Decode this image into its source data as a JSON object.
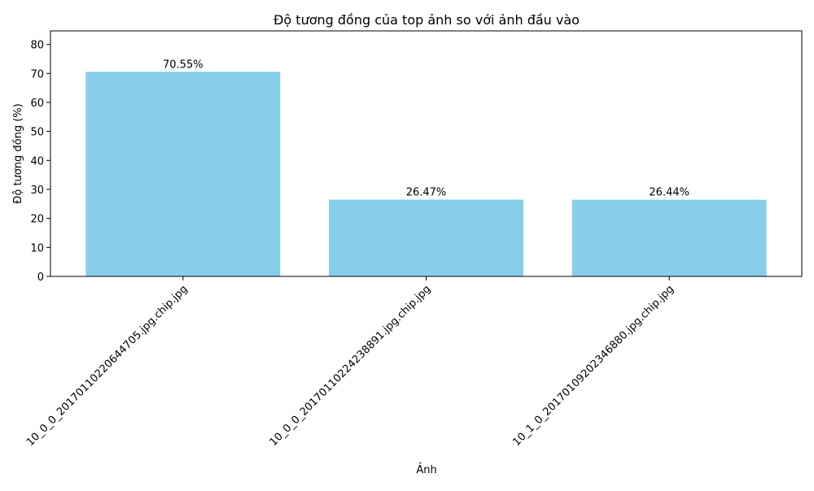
{
  "chart_data": {
    "type": "bar",
    "title": "Độ tương đồng của top ảnh so với ảnh đầu vào",
    "x_label": "Ảnh",
    "y_label": "Độ tương đồng (%)",
    "categories": [
      "10_0_0_20170110220644705.jpg.chip.jpg",
      "10_0_0_20170110224238891.jpg.chip.jpg",
      "10_1_0_20170109202346880.jpg.chip.jpg"
    ],
    "values": [
      70.55,
      26.47,
      26.44
    ],
    "value_labels": [
      "70.55%",
      "26.47%",
      "26.44%"
    ],
    "color": "#87ceeb",
    "ylim": [
      0,
      84.66
    ],
    "yticks": [
      0,
      10,
      20,
      30,
      40,
      50,
      60,
      70,
      80
    ],
    "grid": false
  }
}
